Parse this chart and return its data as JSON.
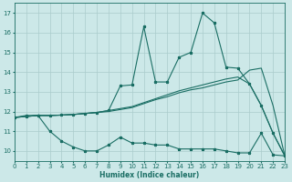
{
  "xlabel": "Humidex (Indice chaleur)",
  "bg_color": "#cce8e8",
  "grid_color": "#aacccc",
  "line_color": "#1a6e64",
  "x_min": 0,
  "x_max": 23,
  "y_min": 9.5,
  "y_max": 17.5,
  "line1_x": [
    0,
    1,
    2,
    3,
    4,
    5,
    6,
    7,
    8,
    9,
    10,
    11,
    12,
    13,
    14,
    15,
    16,
    17,
    18,
    19,
    20,
    21,
    22,
    23
  ],
  "line1_y": [
    11.7,
    11.8,
    11.8,
    11.0,
    10.5,
    10.2,
    10.0,
    10.0,
    10.3,
    10.7,
    10.4,
    10.4,
    10.3,
    10.3,
    10.1,
    10.1,
    10.1,
    10.1,
    10.0,
    9.9,
    9.9,
    10.9,
    9.8,
    9.75
  ],
  "line2_x": [
    0,
    1,
    2,
    3,
    4,
    5,
    6,
    7,
    8,
    9,
    10,
    11,
    12,
    13,
    14,
    15,
    16,
    17,
    18,
    19,
    20,
    21,
    22,
    23
  ],
  "line2_y": [
    11.7,
    11.75,
    11.8,
    11.8,
    11.82,
    11.85,
    11.9,
    11.95,
    12.0,
    12.1,
    12.2,
    12.4,
    12.6,
    12.75,
    12.95,
    13.1,
    13.2,
    13.35,
    13.5,
    13.6,
    14.1,
    14.2,
    12.3,
    9.75
  ],
  "line3_x": [
    0,
    1,
    2,
    3,
    4,
    5,
    6,
    7,
    8,
    9,
    10,
    11,
    12,
    13,
    14,
    15,
    16,
    17,
    18,
    19,
    20,
    21,
    22,
    23
  ],
  "line3_y": [
    11.7,
    11.75,
    11.8,
    11.8,
    11.82,
    11.85,
    11.9,
    11.95,
    12.05,
    12.15,
    12.25,
    12.45,
    12.65,
    12.85,
    13.05,
    13.2,
    13.35,
    13.5,
    13.65,
    13.75,
    13.4,
    12.3,
    10.9,
    9.75
  ],
  "line4_x": [
    0,
    1,
    2,
    3,
    4,
    5,
    6,
    7,
    8,
    9,
    10,
    11,
    12,
    13,
    14,
    15,
    16,
    17,
    18,
    19,
    20,
    21,
    22,
    23
  ],
  "line4_y": [
    11.7,
    11.75,
    11.8,
    11.8,
    11.82,
    11.85,
    11.9,
    11.95,
    12.05,
    13.3,
    13.35,
    16.3,
    13.5,
    13.5,
    14.75,
    15.0,
    17.0,
    16.5,
    14.25,
    14.2,
    13.4,
    12.3,
    10.9,
    9.75
  ],
  "yticks": [
    10,
    11,
    12,
    13,
    14,
    15,
    16,
    17
  ],
  "xticks": [
    0,
    1,
    2,
    3,
    4,
    5,
    6,
    7,
    8,
    9,
    10,
    11,
    12,
    13,
    14,
    15,
    16,
    17,
    18,
    19,
    20,
    21,
    22,
    23
  ]
}
